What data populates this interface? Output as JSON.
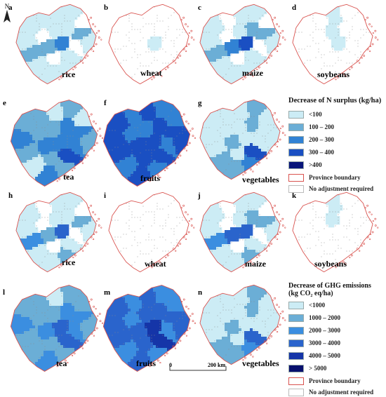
{
  "panels": [
    {
      "letter": "a",
      "crop": "rice",
      "levels": [
        1,
        1,
        1,
        1,
        0,
        1,
        0,
        1,
        1,
        2,
        2,
        2,
        3,
        0,
        1,
        1,
        0,
        1,
        1,
        1
      ]
    },
    {
      "letter": "b",
      "crop": "wheat",
      "levels": [
        0,
        0,
        0,
        0,
        0,
        0,
        0,
        0,
        0,
        0,
        0,
        0,
        1,
        0,
        0,
        0,
        0,
        0,
        0,
        0
      ]
    },
    {
      "letter": "c",
      "crop": "maize",
      "levels": [
        1,
        0,
        1,
        1,
        0,
        1,
        0,
        1,
        2,
        2,
        2,
        3,
        4,
        0,
        1,
        1,
        0,
        1,
        1,
        1
      ]
    },
    {
      "letter": "d",
      "crop": "soybeans",
      "levels": [
        0,
        0,
        1,
        0,
        0,
        0,
        0,
        1,
        0,
        0,
        0,
        0,
        1,
        0,
        0,
        0,
        0,
        0,
        0,
        0
      ]
    },
    {
      "letter": "e",
      "crop": "tea",
      "levels": [
        2,
        2,
        1,
        2,
        1,
        3,
        2,
        2,
        3,
        3,
        2,
        3,
        3,
        3,
        2,
        1,
        2,
        4,
        3,
        2
      ]
    },
    {
      "letter": "f",
      "crop": "fruits",
      "levels": [
        4,
        3,
        4,
        3,
        3,
        4,
        3,
        3,
        4,
        4,
        4,
        4,
        4,
        3,
        4,
        3,
        4,
        4,
        4,
        3
      ]
    },
    {
      "letter": "g",
      "crop": "vegetables",
      "levels": [
        1,
        1,
        1,
        2,
        1,
        1,
        1,
        1,
        2,
        1,
        1,
        2,
        1,
        1,
        1,
        2,
        1,
        4,
        2,
        3
      ]
    },
    {
      "letter": "h",
      "crop": "rice",
      "levels": [
        1,
        0,
        1,
        1,
        0,
        1,
        0,
        1,
        1,
        2,
        3,
        2,
        4,
        0,
        1,
        1,
        0,
        1,
        1,
        2
      ]
    },
    {
      "letter": "i",
      "crop": "wheat",
      "levels": [
        0,
        0,
        0,
        0,
        0,
        0,
        0,
        0,
        0,
        0,
        0,
        0,
        0,
        0,
        0,
        0,
        0,
        0,
        0,
        0
      ]
    },
    {
      "letter": "j",
      "crop": "maize",
      "levels": [
        1,
        0,
        1,
        1,
        0,
        1,
        0,
        1,
        2,
        2,
        3,
        4,
        4,
        0,
        1,
        1,
        0,
        1,
        1,
        2
      ]
    },
    {
      "letter": "k",
      "crop": "soybeans",
      "levels": [
        0,
        0,
        1,
        0,
        0,
        0,
        0,
        1,
        0,
        0,
        0,
        0,
        0,
        0,
        0,
        0,
        0,
        0,
        0,
        0
      ]
    },
    {
      "letter": "l",
      "crop": "tea",
      "levels": [
        2,
        2,
        1,
        2,
        2,
        3,
        2,
        2,
        3,
        3,
        2,
        3,
        4,
        3,
        2,
        2,
        2,
        4,
        3,
        2
      ]
    },
    {
      "letter": "m",
      "crop": "fruits",
      "levels": [
        4,
        3,
        4,
        3,
        3,
        4,
        3,
        4,
        4,
        4,
        4,
        4,
        5,
        3,
        4,
        3,
        4,
        5,
        4,
        3
      ]
    },
    {
      "letter": "n",
      "crop": "vegetables",
      "levels": [
        1,
        1,
        1,
        2,
        1,
        1,
        1,
        1,
        2,
        1,
        1,
        2,
        1,
        1,
        1,
        2,
        1,
        4,
        2,
        3
      ]
    }
  ],
  "legend_n": {
    "title": "Decrease of N surplus (kg/ha)",
    "items": [
      {
        "label": "<100",
        "color": "#ccecf5"
      },
      {
        "label": "100 – 200",
        "color": "#6baed6"
      },
      {
        "label": "200 – 300",
        "color": "#3182d4"
      },
      {
        "label": "300 – 400",
        "color": "#1a4fc2"
      },
      {
        "label": ">400",
        "color": "#08157a"
      }
    ],
    "boundary_label": "Province boundary",
    "none_label": "No adjustment required"
  },
  "legend_ghg": {
    "title_line1": "Decrease of GHG emissions",
    "title_line2": "(kg CO₂ eq/ha)",
    "items": [
      {
        "label": "<1000",
        "color": "#ccecf5"
      },
      {
        "label": "1000 – 2000",
        "color": "#6baed6"
      },
      {
        "label": "2000 – 3000",
        "color": "#3b8ee0"
      },
      {
        "label": "3000 – 4000",
        "color": "#2a64cc"
      },
      {
        "label": "4000 – 5000",
        "color": "#1535a8"
      },
      {
        "label": "> 5000",
        "color": "#08106e"
      }
    ],
    "boundary_label": "Province boundary",
    "none_label": "No adjustment required"
  },
  "north_label": "N",
  "scale": {
    "start": "0",
    "end": "200 km"
  },
  "colors": {
    "boundary": "#d9534f",
    "district_line": "#8a8a8a",
    "none": "#ffffff"
  }
}
